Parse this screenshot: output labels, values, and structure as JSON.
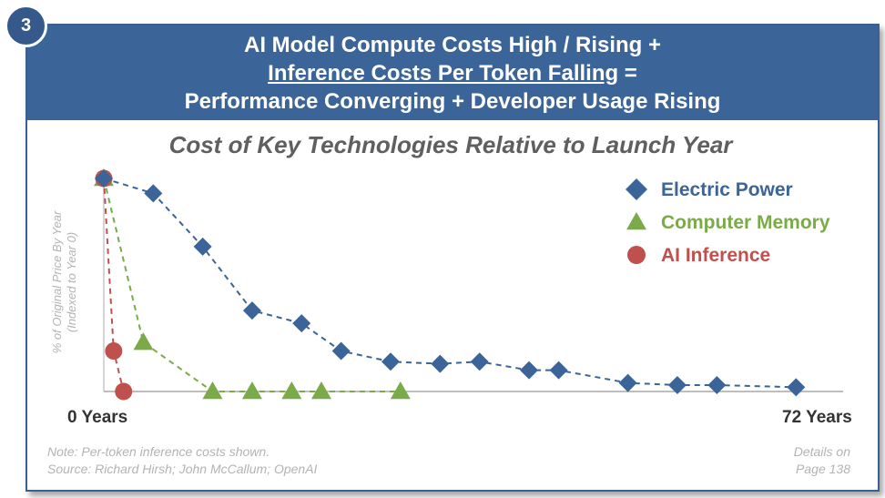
{
  "badge": "3",
  "banner": {
    "line1": "AI Model Compute Costs High / Rising +",
    "line2_underlined": "Inference Costs Per Token Falling",
    "line2_suffix": " =",
    "line3": "Performance Converging + Developer Usage Rising"
  },
  "chart_data": {
    "type": "line",
    "title": "Cost of Key Technologies Relative to Launch Year",
    "ylabel_line1": "% of Original Price By Year",
    "ylabel_line2": "(Indexed to Year 0)",
    "xlim": [
      0,
      72
    ],
    "ylim": [
      0,
      100
    ],
    "x_tick_labels": [
      "0 Years",
      "72 Years"
    ],
    "legend_position": "top-right",
    "grid": false,
    "series": [
      {
        "name": "Electric Power",
        "color": "#3b6498",
        "marker": "diamond",
        "x": [
          0,
          5,
          10,
          15,
          20,
          24,
          29,
          34,
          38,
          43,
          46,
          53,
          58,
          62,
          70
        ],
        "y": [
          100,
          93,
          68,
          38,
          32,
          19,
          14,
          13,
          14,
          10,
          10,
          4,
          3,
          3,
          2
        ]
      },
      {
        "name": "Computer Memory",
        "color": "#7aab48",
        "marker": "triangle",
        "x": [
          0,
          4,
          11,
          15,
          19,
          22,
          30
        ],
        "y": [
          100,
          23,
          0,
          0,
          0,
          0,
          0
        ]
      },
      {
        "name": "AI Inference",
        "color": "#c0504d",
        "marker": "circle",
        "x": [
          0,
          1,
          2
        ],
        "y": [
          100,
          19,
          0
        ]
      }
    ]
  },
  "footer": {
    "note_line1": "Note: Per-token inference costs shown.",
    "note_line2": "Source: Richard Hirsh; John McCallum; OpenAI",
    "details_line1": "Details on",
    "details_line2": "Page 138"
  }
}
